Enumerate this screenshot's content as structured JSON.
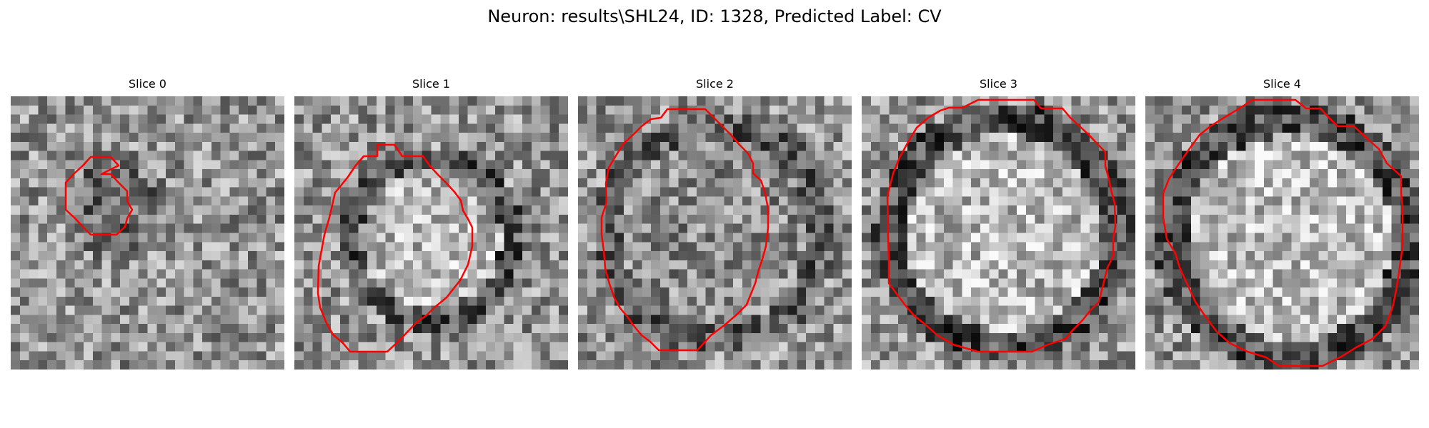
{
  "figure": {
    "title": "Neuron: results\\SHL24, ID: 1328, Predicted Label: CV"
  },
  "panels": [
    {
      "title": "Slice 0"
    },
    {
      "title": "Slice 1"
    },
    {
      "title": "Slice 2"
    },
    {
      "title": "Slice 3"
    },
    {
      "title": "Slice 4"
    }
  ],
  "colors": {
    "background": "#ffffff",
    "contour": "#ff0000",
    "colormap": "gray"
  }
}
